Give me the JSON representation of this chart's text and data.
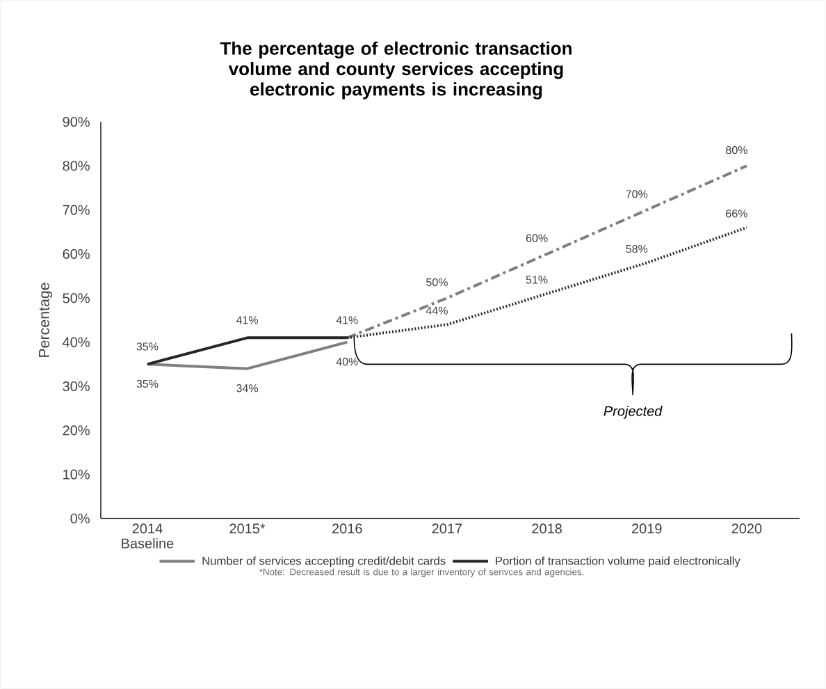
{
  "chart_data": {
    "type": "line",
    "title": "The percentage of electronic transaction volume and county services accepting electronic payments is increasing",
    "ylabel": "Percentage",
    "categories": [
      "2014 Baseline",
      "2015*",
      "2016",
      "2017",
      "2018",
      "2019",
      "2020"
    ],
    "ylim": [
      0,
      90
    ],
    "yticks": [
      {
        "value": 0,
        "label": "0%"
      },
      {
        "value": 10,
        "label": "10%"
      },
      {
        "value": 20,
        "label": "20%"
      },
      {
        "value": 30,
        "label": "30%"
      },
      {
        "value": 40,
        "label": "40%"
      },
      {
        "value": 50,
        "label": "50%"
      },
      {
        "value": 60,
        "label": "60%"
      },
      {
        "value": 70,
        "label": "70%"
      },
      {
        "value": 80,
        "label": "80%"
      },
      {
        "value": 90,
        "label": "90%"
      }
    ],
    "series": [
      {
        "name": "Number of services accepting credit/debit cards",
        "color": "#7f7f7f",
        "line_style": "solid",
        "values": [
          35,
          34,
          40,
          null,
          null,
          null,
          null
        ],
        "value_labels": [
          "35%",
          "34%",
          "40%",
          null,
          null,
          null,
          null
        ]
      },
      {
        "name": "Portion of transaction volume paid electronically",
        "color": "#262626",
        "line_style": "solid",
        "values": [
          35,
          41,
          41,
          null,
          null,
          null,
          null
        ],
        "value_labels": [
          "35%",
          "41%",
          "41%",
          null,
          null,
          null,
          null
        ]
      },
      {
        "color": "#7f7f7f",
        "line_style": "dashed",
        "values": [
          null,
          null,
          41,
          50,
          60,
          70,
          80
        ],
        "value_labels": [
          null,
          null,
          null,
          "50%",
          "60%",
          "70%",
          "80%"
        ]
      },
      {
        "color": "#262626",
        "line_style": "dotted",
        "values": [
          null,
          null,
          41,
          44,
          51,
          58,
          66
        ],
        "value_labels": [
          null,
          null,
          null,
          "44%",
          "51%",
          "58%",
          "66%"
        ]
      }
    ],
    "legend": "bottom",
    "grid": false,
    "annotations": [
      "Projected",
      "*Note: Decreased result is due to a larger inventory of serivces and agencies."
    ]
  }
}
